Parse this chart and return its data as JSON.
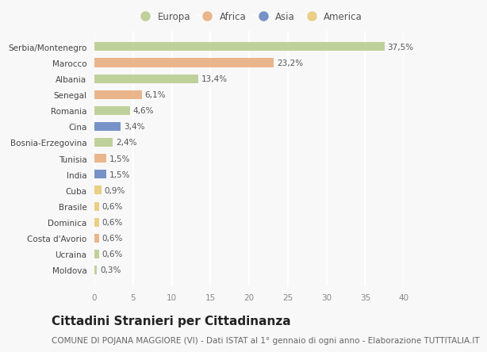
{
  "categories": [
    "Serbia/Montenegro",
    "Marocco",
    "Albania",
    "Senegal",
    "Romania",
    "Cina",
    "Bosnia-Erzegovina",
    "Tunisia",
    "India",
    "Cuba",
    "Brasile",
    "Dominica",
    "Costa d'Avorio",
    "Ucraina",
    "Moldova"
  ],
  "values": [
    37.5,
    23.2,
    13.4,
    6.1,
    4.6,
    3.4,
    2.4,
    1.5,
    1.5,
    0.9,
    0.6,
    0.6,
    0.6,
    0.6,
    0.3
  ],
  "labels": [
    "37,5%",
    "23,2%",
    "13,4%",
    "6,1%",
    "4,6%",
    "3,4%",
    "2,4%",
    "1,5%",
    "1,5%",
    "0,9%",
    "0,6%",
    "0,6%",
    "0,6%",
    "0,6%",
    "0,3%"
  ],
  "continents": [
    "Europa",
    "Africa",
    "Europa",
    "Africa",
    "Europa",
    "Asia",
    "Europa",
    "Africa",
    "Asia",
    "America",
    "America",
    "America",
    "Africa",
    "Europa",
    "Europa"
  ],
  "colors": {
    "Europa": "#b5cb8b",
    "Africa": "#e8aa78",
    "Asia": "#6080c0",
    "America": "#e8c870"
  },
  "legend_order": [
    "Europa",
    "Africa",
    "Asia",
    "America"
  ],
  "xlim": [
    0,
    40
  ],
  "xticks": [
    0,
    5,
    10,
    15,
    20,
    25,
    30,
    35,
    40
  ],
  "title": "Cittadini Stranieri per Cittadinanza",
  "subtitle": "COMUNE DI POJANA MAGGIORE (VI) - Dati ISTAT al 1° gennaio di ogni anno - Elaborazione TUTTITALIA.IT",
  "background_color": "#f8f8f8",
  "bar_height": 0.55,
  "title_fontsize": 11,
  "subtitle_fontsize": 7.5,
  "label_fontsize": 7.5,
  "tick_fontsize": 7.5,
  "legend_fontsize": 8.5
}
